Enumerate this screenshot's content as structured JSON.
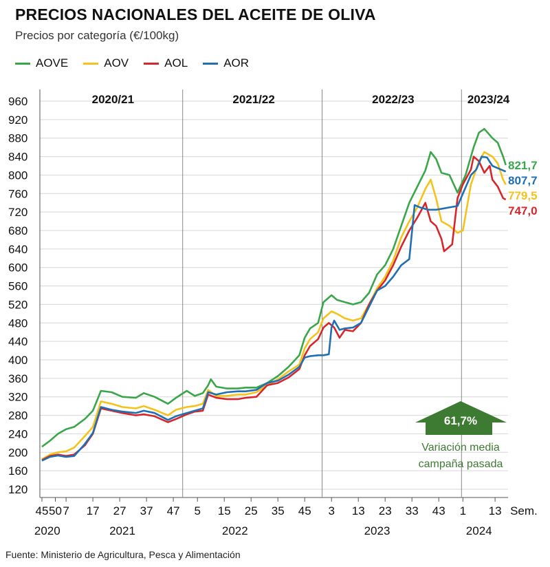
{
  "title": "PRECIOS NACIONALES DEL ACEITE DE OLIVA",
  "subtitle": "Precios por categoría (€/100kg)",
  "source": "Fuente: Ministerio de Agricultura, Pesca y Alimentación",
  "colors": {
    "AOVE": "#3aa64a",
    "AOV": "#f4c21b",
    "AOL": "#d7262b",
    "AOR": "#1f6fb2",
    "annotation": "#3d7a32"
  },
  "chart_data": {
    "type": "line",
    "ylim": [
      120,
      960
    ],
    "y_ticks": [
      120,
      160,
      200,
      240,
      280,
      320,
      360,
      400,
      440,
      480,
      520,
      560,
      600,
      640,
      680,
      720,
      760,
      800,
      840,
      880,
      920,
      960
    ],
    "x_unit_label": "Sem.",
    "x_ticks": [
      {
        "label": "45",
        "i": 0
      },
      {
        "label": "50",
        "i": 5
      },
      {
        "label": "7",
        "i": 9
      },
      {
        "label": "17",
        "i": 19
      },
      {
        "label": "27",
        "i": 29
      },
      {
        "label": "37",
        "i": 39
      },
      {
        "label": "47",
        "i": 49
      },
      {
        "label": "5",
        "i": 58
      },
      {
        "label": "15",
        "i": 68
      },
      {
        "label": "25",
        "i": 78
      },
      {
        "label": "35",
        "i": 88
      },
      {
        "label": "45",
        "i": 98
      },
      {
        "label": "3",
        "i": 108
      },
      {
        "label": "13",
        "i": 118
      },
      {
        "label": "23",
        "i": 128
      },
      {
        "label": "33",
        "i": 138
      },
      {
        "label": "43",
        "i": 148
      },
      {
        "label": "1",
        "i": 157
      },
      {
        "label": "13",
        "i": 169
      }
    ],
    "year_labels": [
      {
        "label": "2020",
        "i": 2
      },
      {
        "label": "2021",
        "i": 30
      },
      {
        "label": "2022",
        "i": 72
      },
      {
        "label": "2023",
        "i": 125
      },
      {
        "label": "2024",
        "i": 163
      }
    ],
    "seasons": [
      {
        "label": "2020/21",
        "start": 0,
        "end": 53
      },
      {
        "label": "2021/22",
        "start": 53,
        "end": 105
      },
      {
        "label": "2022/23",
        "start": 105,
        "end": 157
      },
      {
        "label": "2023/24",
        "start": 157,
        "end": 172
      }
    ],
    "series": [
      {
        "name": "AOVE",
        "color": "#3aa64a",
        "last_label": "821,7",
        "points": [
          [
            0,
            212
          ],
          [
            3,
            225
          ],
          [
            6,
            240
          ],
          [
            9,
            250
          ],
          [
            12,
            255
          ],
          [
            16,
            272
          ],
          [
            19,
            290
          ],
          [
            22,
            333
          ],
          [
            26,
            330
          ],
          [
            30,
            320
          ],
          [
            35,
            318
          ],
          [
            38,
            328
          ],
          [
            42,
            320
          ],
          [
            47,
            305
          ],
          [
            50,
            318
          ],
          [
            54,
            333
          ],
          [
            57,
            322
          ],
          [
            60,
            328
          ],
          [
            62,
            345
          ],
          [
            63,
            358
          ],
          [
            65,
            342
          ],
          [
            69,
            338
          ],
          [
            73,
            338
          ],
          [
            76,
            340
          ],
          [
            80,
            340
          ],
          [
            84,
            350
          ],
          [
            88,
            365
          ],
          [
            92,
            385
          ],
          [
            96,
            410
          ],
          [
            98,
            448
          ],
          [
            100,
            468
          ],
          [
            103,
            480
          ],
          [
            105,
            525
          ],
          [
            108,
            540
          ],
          [
            110,
            530
          ],
          [
            113,
            525
          ],
          [
            116,
            520
          ],
          [
            119,
            525
          ],
          [
            122,
            545
          ],
          [
            125,
            585
          ],
          [
            128,
            605
          ],
          [
            131,
            640
          ],
          [
            134,
            690
          ],
          [
            137,
            740
          ],
          [
            140,
            775
          ],
          [
            143,
            810
          ],
          [
            145,
            850
          ],
          [
            147,
            835
          ],
          [
            149,
            805
          ],
          [
            152,
            800
          ],
          [
            155,
            762
          ],
          [
            158,
            800
          ],
          [
            161,
            860
          ],
          [
            163,
            892
          ],
          [
            165,
            900
          ],
          [
            168,
            880
          ],
          [
            170,
            870
          ],
          [
            172,
            840
          ],
          [
            173,
            821.7
          ]
        ]
      },
      {
        "name": "AOV",
        "color": "#f4c21b",
        "last_label": "779,5",
        "points": [
          [
            0,
            185
          ],
          [
            3,
            195
          ],
          [
            6,
            200
          ],
          [
            9,
            202
          ],
          [
            12,
            210
          ],
          [
            16,
            235
          ],
          [
            19,
            255
          ],
          [
            22,
            310
          ],
          [
            26,
            305
          ],
          [
            30,
            298
          ],
          [
            35,
            295
          ],
          [
            38,
            300
          ],
          [
            42,
            292
          ],
          [
            47,
            280
          ],
          [
            50,
            292
          ],
          [
            54,
            298
          ],
          [
            57,
            300
          ],
          [
            60,
            305
          ],
          [
            62,
            335
          ],
          [
            65,
            322
          ],
          [
            69,
            322
          ],
          [
            73,
            325
          ],
          [
            76,
            325
          ],
          [
            80,
            330
          ],
          [
            84,
            345
          ],
          [
            88,
            358
          ],
          [
            92,
            375
          ],
          [
            96,
            390
          ],
          [
            98,
            425
          ],
          [
            100,
            445
          ],
          [
            103,
            460
          ],
          [
            105,
            490
          ],
          [
            108,
            505
          ],
          [
            110,
            500
          ],
          [
            113,
            490
          ],
          [
            116,
            485
          ],
          [
            119,
            490
          ],
          [
            122,
            520
          ],
          [
            125,
            555
          ],
          [
            128,
            580
          ],
          [
            131,
            615
          ],
          [
            134,
            665
          ],
          [
            137,
            700
          ],
          [
            140,
            730
          ],
          [
            143,
            770
          ],
          [
            145,
            790
          ],
          [
            147,
            750
          ],
          [
            149,
            700
          ],
          [
            152,
            690
          ],
          [
            155,
            675
          ],
          [
            157,
            680
          ],
          [
            160,
            780
          ],
          [
            163,
            830
          ],
          [
            165,
            850
          ],
          [
            168,
            840
          ],
          [
            170,
            825
          ],
          [
            172,
            790
          ],
          [
            173,
            779.5
          ]
        ]
      },
      {
        "name": "AOL",
        "color": "#d7262b",
        "last_label": "747,0",
        "points": [
          [
            0,
            183
          ],
          [
            3,
            192
          ],
          [
            6,
            195
          ],
          [
            9,
            192
          ],
          [
            12,
            195
          ],
          [
            16,
            215
          ],
          [
            19,
            240
          ],
          [
            22,
            295
          ],
          [
            26,
            290
          ],
          [
            30,
            285
          ],
          [
            35,
            280
          ],
          [
            38,
            282
          ],
          [
            42,
            278
          ],
          [
            47,
            265
          ],
          [
            50,
            272
          ],
          [
            54,
            282
          ],
          [
            57,
            288
          ],
          [
            60,
            290
          ],
          [
            62,
            325
          ],
          [
            65,
            318
          ],
          [
            69,
            315
          ],
          [
            73,
            315
          ],
          [
            76,
            318
          ],
          [
            80,
            320
          ],
          [
            84,
            345
          ],
          [
            88,
            350
          ],
          [
            92,
            362
          ],
          [
            96,
            380
          ],
          [
            98,
            410
          ],
          [
            100,
            430
          ],
          [
            103,
            445
          ],
          [
            105,
            470
          ],
          [
            107,
            480
          ],
          [
            109,
            470
          ],
          [
            111,
            448
          ],
          [
            113,
            465
          ],
          [
            116,
            462
          ],
          [
            119,
            480
          ],
          [
            122,
            520
          ],
          [
            125,
            550
          ],
          [
            128,
            572
          ],
          [
            131,
            605
          ],
          [
            134,
            645
          ],
          [
            137,
            680
          ],
          [
            140,
            708
          ],
          [
            143,
            740
          ],
          [
            145,
            700
          ],
          [
            147,
            690
          ],
          [
            149,
            662
          ],
          [
            150,
            635
          ],
          [
            153,
            650
          ],
          [
            155,
            750
          ],
          [
            157,
            780
          ],
          [
            160,
            812
          ],
          [
            161,
            840
          ],
          [
            163,
            830
          ],
          [
            165,
            805
          ],
          [
            167,
            820
          ],
          [
            168,
            790
          ],
          [
            170,
            775
          ],
          [
            172,
            750
          ],
          [
            173,
            747.0
          ]
        ]
      },
      {
        "name": "AOR",
        "color": "#1f6fb2",
        "last_label": "807,7",
        "points": [
          [
            0,
            182
          ],
          [
            3,
            190
          ],
          [
            6,
            193
          ],
          [
            9,
            190
          ],
          [
            12,
            192
          ],
          [
            16,
            218
          ],
          [
            19,
            242
          ],
          [
            22,
            298
          ],
          [
            26,
            292
          ],
          [
            30,
            288
          ],
          [
            35,
            285
          ],
          [
            38,
            290
          ],
          [
            42,
            285
          ],
          [
            47,
            270
          ],
          [
            50,
            278
          ],
          [
            54,
            285
          ],
          [
            57,
            290
          ],
          [
            60,
            295
          ],
          [
            62,
            330
          ],
          [
            65,
            325
          ],
          [
            69,
            330
          ],
          [
            73,
            332
          ],
          [
            76,
            332
          ],
          [
            80,
            335
          ],
          [
            84,
            350
          ],
          [
            88,
            355
          ],
          [
            92,
            368
          ],
          [
            96,
            385
          ],
          [
            98,
            405
          ],
          [
            100,
            408
          ],
          [
            103,
            410
          ],
          [
            105,
            410
          ],
          [
            107,
            412
          ],
          [
            108,
            470
          ],
          [
            109,
            485
          ],
          [
            111,
            465
          ],
          [
            113,
            468
          ],
          [
            116,
            470
          ],
          [
            119,
            480
          ],
          [
            122,
            515
          ],
          [
            125,
            550
          ],
          [
            128,
            560
          ],
          [
            131,
            580
          ],
          [
            134,
            605
          ],
          [
            137,
            618
          ],
          [
            139,
            735
          ],
          [
            141,
            730
          ],
          [
            144,
            725
          ],
          [
            147,
            725
          ],
          [
            150,
            728
          ],
          [
            152,
            730
          ],
          [
            155,
            733
          ],
          [
            157,
            760
          ],
          [
            160,
            800
          ],
          [
            162,
            812
          ],
          [
            164,
            840
          ],
          [
            166,
            838
          ],
          [
            168,
            820
          ],
          [
            170,
            815
          ],
          [
            172,
            810
          ],
          [
            173,
            807.7
          ]
        ]
      }
    ],
    "annotation": {
      "value": "61,7%",
      "lines": [
        "Variación media",
        "campaña pasada"
      ]
    }
  }
}
